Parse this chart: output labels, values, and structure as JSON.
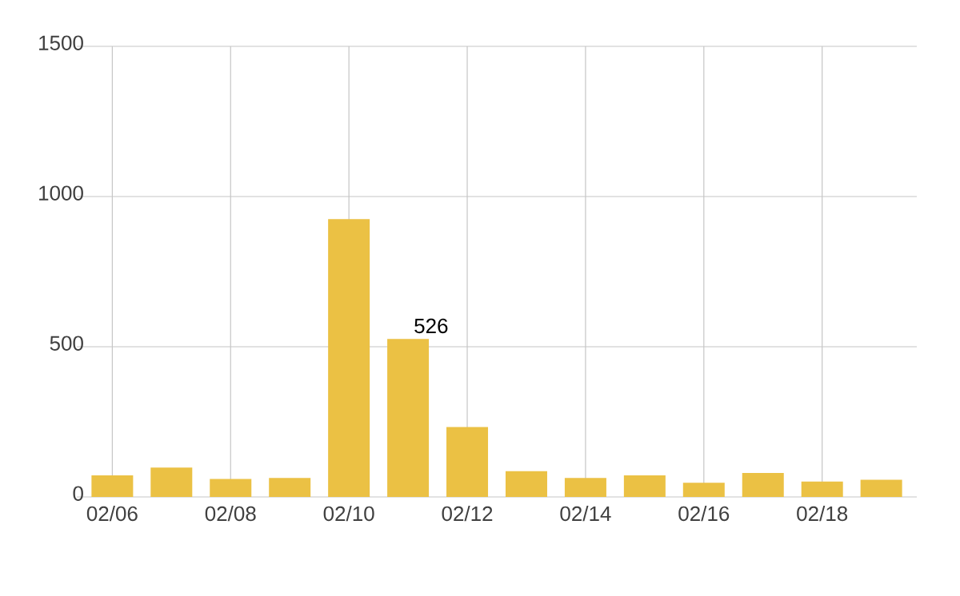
{
  "chart_data": {
    "type": "bar",
    "categories": [
      "02/06",
      null,
      "02/08",
      null,
      "02/10",
      null,
      "02/12",
      null,
      "02/14",
      null,
      "02/16",
      null,
      "02/18",
      null
    ],
    "values": [
      72,
      98,
      60,
      63,
      925,
      526,
      233,
      86,
      63,
      72,
      47,
      80,
      51,
      57
    ],
    "value_labels": [
      null,
      null,
      null,
      null,
      null,
      "526",
      null,
      null,
      null,
      null,
      null,
      null,
      null,
      null
    ],
    "color": "#ebc144",
    "ylim": [
      0,
      1500
    ],
    "yticks": [
      0,
      500,
      1000,
      1500
    ],
    "grid": true
  }
}
